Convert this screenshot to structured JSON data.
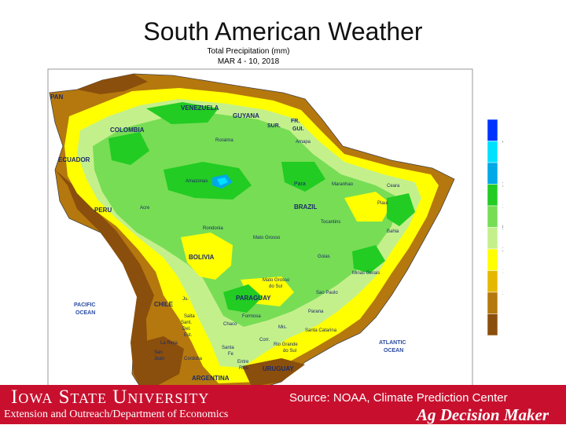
{
  "slide": {
    "title": "South American Weather"
  },
  "map": {
    "title": "Total Precipitation (mm)",
    "date_range": "MAR 4 - 10, 2018",
    "legend": {
      "bins": [
        {
          "color": "#0033ff",
          "label": ""
        },
        {
          "color": "#00e0ff",
          "label": "400"
        },
        {
          "color": "#00a8e8",
          "label": ""
        },
        {
          "color": "#22cc22",
          "label": "200"
        },
        {
          "color": "#77dd55",
          "label": "100"
        },
        {
          "color": "#c4f08c",
          "label": "50"
        },
        {
          "color": "#ffff00",
          "label": "25"
        },
        {
          "color": "#e5b800",
          "label": "10"
        },
        {
          "color": "#b5780e",
          "label": "1"
        },
        {
          "color": "#8a4f0c",
          "label": ""
        }
      ]
    },
    "labels": {
      "pan": "PAN",
      "venezuela": "VENEZUELA",
      "guyana": "GUYANA",
      "fr": "FR.",
      "sur": "SUR.",
      "gui": "GUI.",
      "colombia": "COLOMBIA",
      "roraima": "Roraima",
      "amapa": "Amapa",
      "ecuador": "ECUADOR",
      "amazonas": "Amazonas",
      "para": "Para",
      "maranhao": "Maranhao",
      "ceara": "Ceara",
      "peru": "PERU",
      "acre": "Acre",
      "brazil": "BRAZIL",
      "piaui": "Piaui",
      "rondonia": "Rondonia",
      "tocantins": "Tocantins",
      "bahia": "Bahia",
      "mato_grosso": "Mato Grosso",
      "bolivia": "BOLIVIA",
      "minas_gerais": "Minas Gerais",
      "goias": "Goias",
      "mato_grosso_do_sul_1": "Mato Grosso",
      "mato_grosso_do_sul_2": "do Sul",
      "paraguay": "PARAGUAY",
      "sao_paulo": "Sao Paulo",
      "chile": "CHILE",
      "jujuy": "Ju.",
      "salta": "Salta",
      "formosa": "Formosa",
      "parana": "Parana",
      "sant_del_est_1": "Sant.",
      "sant_del_est_2": "Del.",
      "sant_del_est_3": "Est.",
      "chaco": "Chaco",
      "mis": "Mis.",
      "santa_catarina": "Santa Catarina",
      "corr": "Corr.",
      "pacific_1": "PACIFIC",
      "pacific_2": "OCEAN",
      "la_rioja": "La Rioja",
      "santa_fe_1": "Santa",
      "santa_fe_2": "Fe",
      "rio_grande_1": "Rio Grande",
      "rio_grande_2": "do Sul",
      "atlantic_1": "ATLANTIC",
      "atlantic_2": "OCEAN",
      "san_juan_1": "San",
      "san_juan_2": "Juan",
      "cordoba": "Cordoba",
      "entre_rios_1": "Entre",
      "entre_rios_2": "Rios",
      "uruguay": "URUGUAY",
      "argentina": "ARGENTINA"
    }
  },
  "footer": {
    "university": "Iowa State University",
    "department": "Extension and Outreach/Department of Economics",
    "source": "Source: NOAA, Climate Prediction Center",
    "brand": "Ag Decision Maker"
  },
  "colors": {
    "footer_red": "#c8102e",
    "ocean": "#ffffff"
  }
}
